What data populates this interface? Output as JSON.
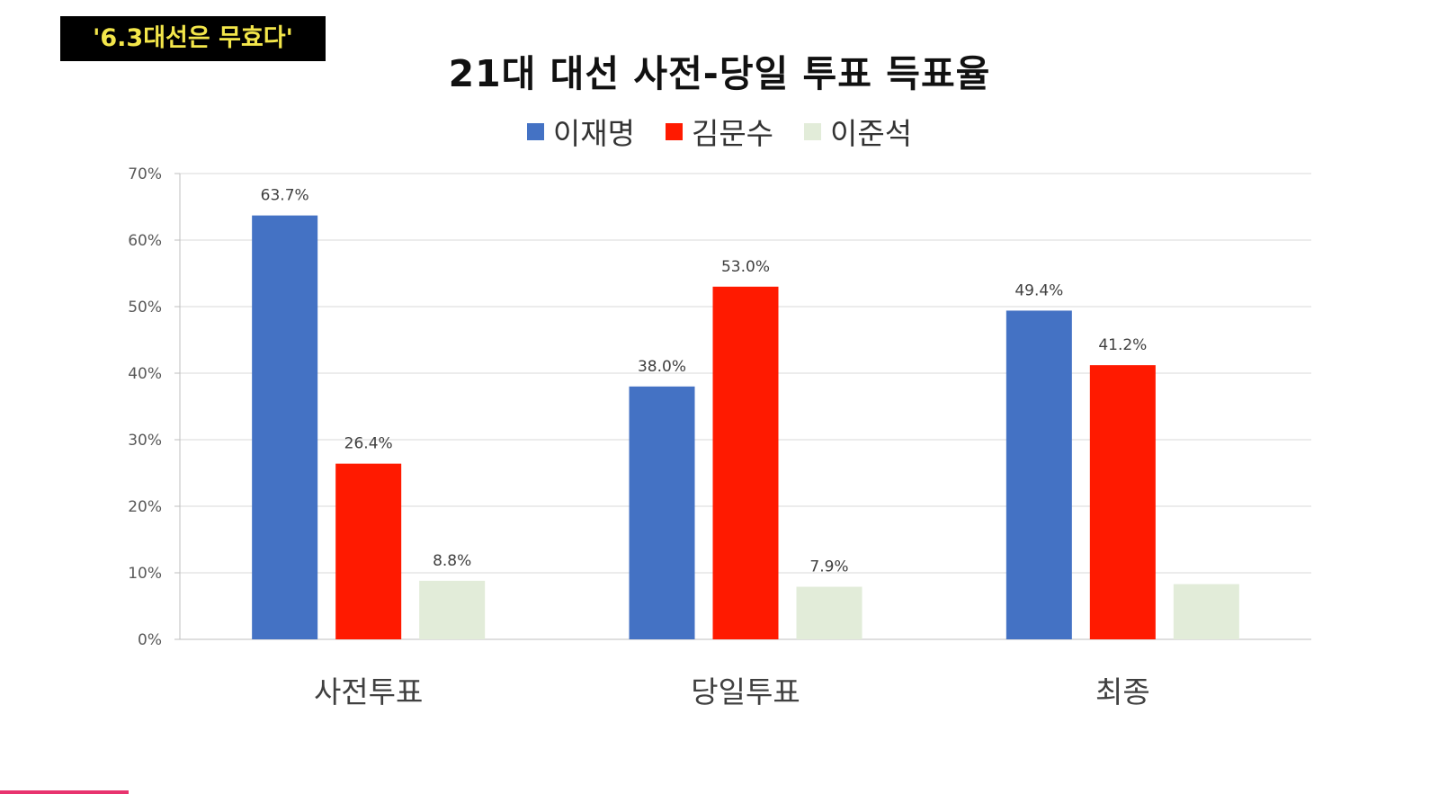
{
  "badge": {
    "text": "'6.3대선은 무효다'"
  },
  "chart_data": {
    "type": "bar",
    "title": "21대 대선  사전-당일 투표  득표율",
    "categories": [
      "사전투표",
      "당일투표",
      "최종"
    ],
    "series": [
      {
        "name": "이재명",
        "color": "#4472c4",
        "values": [
          63.7,
          38.0,
          49.4
        ],
        "labels": [
          "63.7%",
          "38.0%",
          "49.4%"
        ]
      },
      {
        "name": "김문수",
        "color": "#ff1a00",
        "values": [
          26.4,
          53.0,
          41.2
        ],
        "labels": [
          "26.4%",
          "53.0%",
          "41.2%"
        ]
      },
      {
        "name": "이준석",
        "color": "#e2ecd9",
        "values": [
          8.8,
          7.9,
          8.3
        ],
        "labels": [
          "8.8%",
          "7.9%",
          ""
        ]
      }
    ],
    "ylim": [
      0,
      70
    ],
    "yticks": [
      "0%",
      "10%",
      "20%",
      "30%",
      "40%",
      "50%",
      "60%",
      "70%"
    ],
    "grid": true,
    "legend_position": "top"
  }
}
